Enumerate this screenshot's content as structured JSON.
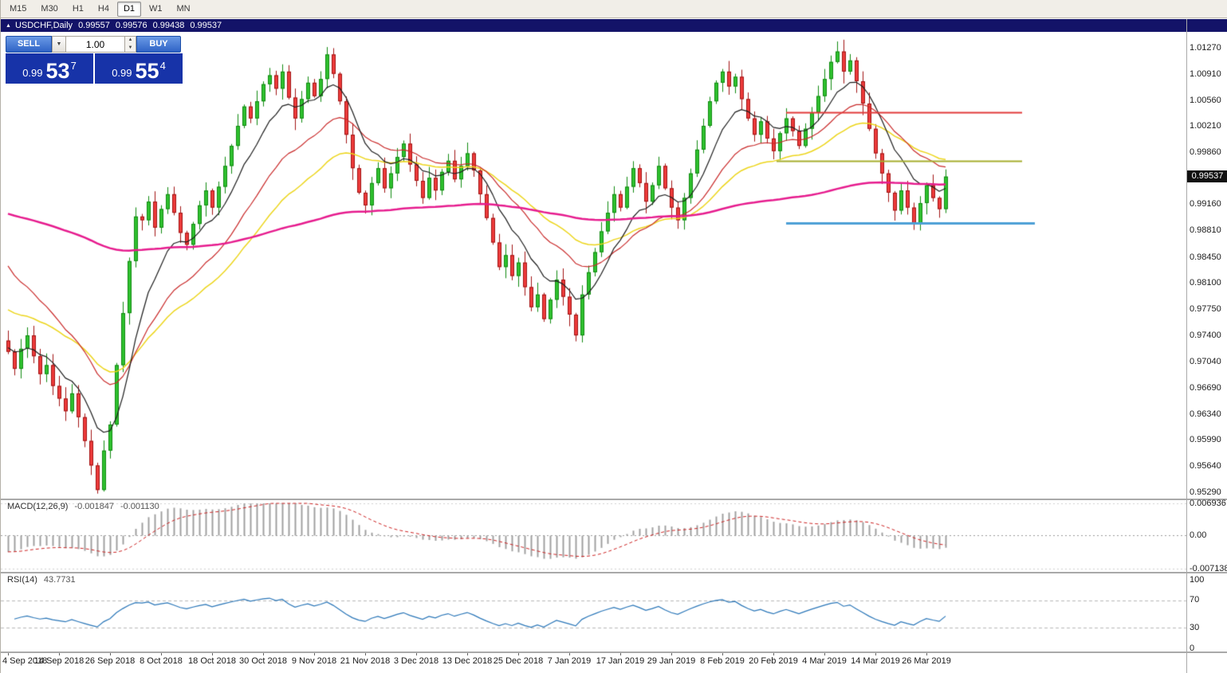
{
  "toolbar": {
    "timeframes": [
      "M15",
      "M30",
      "H1",
      "H4",
      "D1",
      "W1",
      "MN"
    ],
    "active": "D1"
  },
  "chart_header": {
    "symbol": "USDCHF,Daily",
    "open": "0.99557",
    "high": "0.99576",
    "low": "0.99438",
    "close": "0.99537"
  },
  "trade_panel": {
    "sell_label": "SELL",
    "buy_label": "BUY",
    "volume": "1.00",
    "sell_small": "0.99",
    "sell_big": "53",
    "sell_sup": "7",
    "buy_small": "0.99",
    "buy_big": "55",
    "buy_sup": "4"
  },
  "price_scale": {
    "labels": [
      "1.01270",
      "1.00910",
      "1.00560",
      "1.00210",
      "0.99860",
      "0.99510",
      "0.99160",
      "0.98810",
      "0.98450",
      "0.98100",
      "0.97750",
      "0.97400",
      "0.97040",
      "0.96690",
      "0.96340",
      "0.95990",
      "0.95640",
      "0.95290"
    ],
    "current_price": "0.99537"
  },
  "indicators": {
    "macd": {
      "label": "MACD(12,26,9)",
      "value_main": "-0.001847",
      "value_signal": "-0.001130",
      "scale_max": "0.006936",
      "scale_zero": "0.00",
      "scale_min": "-0.007138",
      "fast": 12,
      "slow": 26,
      "signal": 9,
      "seed_fast_offset": -0.0018,
      "seed_slow_offset": 0.0022,
      "seed_signal": -0.0035
    },
    "rsi": {
      "label": "RSI(14)",
      "value": "43.7731",
      "period": 14,
      "levels": [
        "100",
        "70",
        "30",
        "0"
      ]
    }
  },
  "date_axis": {
    "labels": [
      {
        "text": "4 Sep 2018",
        "i": 0
      },
      {
        "text": "14 Sep 2018",
        "i": 8
      },
      {
        "text": "26 Sep 2018",
        "i": 16
      },
      {
        "text": "8 Oct 2018",
        "i": 24
      },
      {
        "text": "18 Oct 2018",
        "i": 32
      },
      {
        "text": "30 Oct 2018",
        "i": 40
      },
      {
        "text": "9 Nov 2018",
        "i": 48
      },
      {
        "text": "21 Nov 2018",
        "i": 56
      },
      {
        "text": "3 Dec 2018",
        "i": 64
      },
      {
        "text": "13 Dec 2018",
        "i": 72
      },
      {
        "text": "25 Dec 2018",
        "i": 80
      },
      {
        "text": "7 Jan 2019",
        "i": 88
      },
      {
        "text": "17 Jan 2019",
        "i": 96
      },
      {
        "text": "29 Jan 2019",
        "i": 104
      },
      {
        "text": "8 Feb 2019",
        "i": 112
      },
      {
        "text": "20 Feb 2019",
        "i": 120
      },
      {
        "text": "4 Mar 2019",
        "i": 128
      },
      {
        "text": "14 Mar 2019",
        "i": 136
      },
      {
        "text": "26 Mar 2019",
        "i": 144
      }
    ]
  },
  "chart_data": {
    "type": "candlestick",
    "symbol": "USDCHF",
    "timeframe": "Daily",
    "y_axis": {
      "price_top": 1.0127,
      "price_bottom": 0.9529
    },
    "closes": [
      0.9718,
      0.9695,
      0.9722,
      0.974,
      0.9712,
      0.9688,
      0.97,
      0.9672,
      0.9655,
      0.9638,
      0.9662,
      0.963,
      0.9598,
      0.9565,
      0.9532,
      0.9585,
      0.962,
      0.97,
      0.977,
      0.984,
      0.99,
      0.9895,
      0.992,
      0.9885,
      0.991,
      0.993,
      0.9905,
      0.9878,
      0.9862,
      0.989,
      0.9915,
      0.9935,
      0.9912,
      0.994,
      0.9968,
      0.9995,
      1.0022,
      1.0048,
      1.0032,
      1.0055,
      1.0078,
      1.009,
      1.0072,
      1.0095,
      1.006,
      1.0032,
      1.0058,
      1.008,
      1.0062,
      1.0085,
      1.0118,
      1.0092,
      1.0055,
      1.001,
      0.9965,
      0.9932,
      0.9915,
      0.9945,
      0.9965,
      0.9938,
      0.9958,
      0.998,
      0.9998,
      0.997,
      0.9948,
      0.9925,
      0.9952,
      0.9935,
      0.996,
      0.9975,
      0.995,
      0.9968,
      0.9985,
      0.9962,
      0.993,
      0.9898,
      0.9865,
      0.9832,
      0.9848,
      0.982,
      0.9838,
      0.9805,
      0.9778,
      0.9795,
      0.9762,
      0.9788,
      0.9815,
      0.9792,
      0.9768,
      0.974,
      0.9795,
      0.9825,
      0.9852,
      0.988,
      0.9905,
      0.993,
      0.9912,
      0.994,
      0.9965,
      0.9945,
      0.992,
      0.9942,
      0.9968,
      0.9938,
      0.9912,
      0.9895,
      0.9925,
      0.9958,
      0.999,
      1.0022,
      1.0055,
      1.008,
      1.0095,
      1.0075,
      1.0088,
      1.0058,
      1.0032,
      1.001,
      1.0028,
      1.0005,
      0.9988,
      1.0012,
      1.0032,
      1.0015,
      0.9995,
      1.0018,
      1.004,
      1.0062,
      1.0085,
      1.0108,
      1.0122,
      1.0095,
      1.011,
      1.0082,
      1.0052,
      1.0018,
      0.9985,
      0.9958,
      0.9932,
      0.9908,
      0.9935,
      0.9912,
      0.989,
      0.9918,
      0.9942,
      0.9925,
      0.991,
      0.99537
    ],
    "wick_overrides": [
      {
        "i": 14,
        "low": 0.9528
      },
      {
        "i": 50,
        "high": 1.0128
      },
      {
        "i": 89,
        "low": 0.9732
      },
      {
        "i": 130,
        "high": 1.0128
      },
      {
        "i": 142,
        "low": 0.9885
      }
    ],
    "moving_averages": [
      {
        "name": "ma-yellow",
        "period": 34,
        "seed": 0.9778,
        "color": "#ecd51b",
        "width": 1.5
      },
      {
        "name": "ma-red",
        "period": 21,
        "seed": 0.9845,
        "color": "#c92a2a",
        "width": 1.2
      },
      {
        "name": "ma-black",
        "period": 9,
        "seed": 0.9725,
        "color": "#1c1c1c",
        "width": 1.2
      },
      {
        "name": "ma-magenta",
        "period": 160,
        "seed": 0.9906,
        "color": "#e61c8e",
        "width": 2.5
      }
    ],
    "hlines": [
      {
        "price": 1.004,
        "i1": 122,
        "i2": 159,
        "color": "#e23b3b",
        "width": 2
      },
      {
        "price": 0.9975,
        "i1": 120.5,
        "i2": 159,
        "color": "#a6ad2d",
        "width": 2
      },
      {
        "price": 0.9891,
        "i1": 122,
        "i2": 161,
        "color": "#4d9fd6",
        "width": 3
      }
    ]
  },
  "colors": {
    "candle_up": "#2fc12f",
    "candle_up_border": "#0f8a0f",
    "candle_down": "#ee3b3b",
    "candle_down_border": "#a01212",
    "macd_hist": "#a0a0a0",
    "macd_signal": "#cc2222",
    "rsi_line": "#2a76b8",
    "titlebar_navy": "#131368",
    "quote_blue": "#1733a8"
  }
}
